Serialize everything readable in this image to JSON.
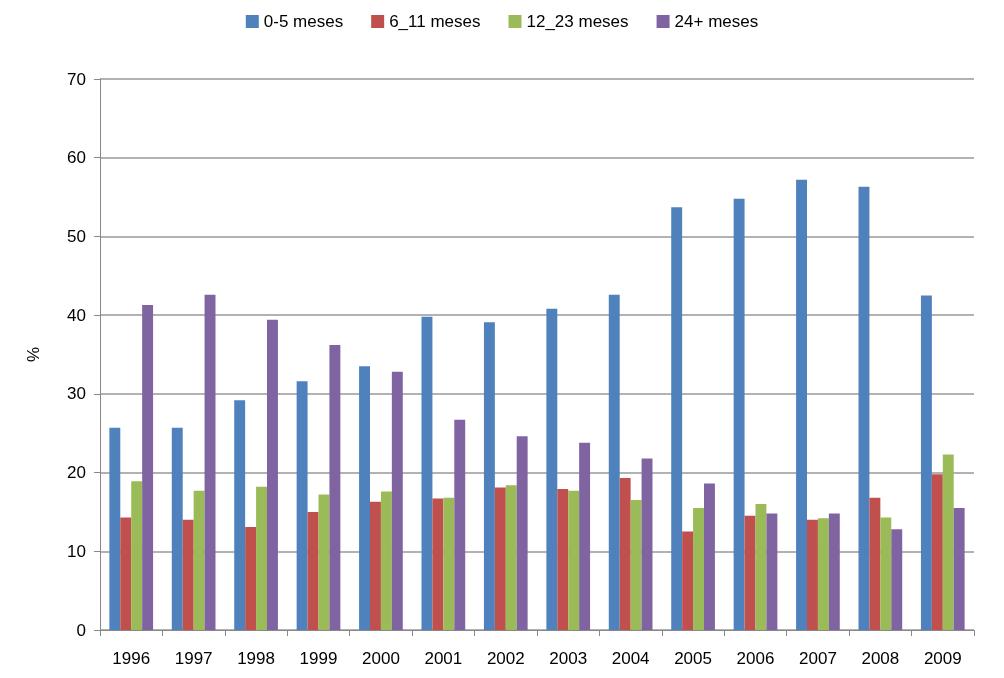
{
  "chart_data": {
    "type": "bar",
    "ylabel": "%",
    "categories": [
      "1996",
      "1997",
      "1998",
      "1999",
      "2000",
      "2001",
      "2002",
      "2003",
      "2004",
      "2005",
      "2006",
      "2007",
      "2008",
      "2009"
    ],
    "series": [
      {
        "name": "0-5 meses",
        "color": "#4f81bd",
        "values": [
          25.7,
          25.7,
          29.2,
          31.6,
          33.5,
          39.8,
          39.1,
          40.8,
          42.6,
          53.7,
          54.8,
          57.2,
          56.3,
          42.5
        ]
      },
      {
        "name": "6_11 meses",
        "color": "#c0504d",
        "values": [
          14.3,
          14.0,
          13.1,
          15.0,
          16.3,
          16.7,
          18.1,
          17.9,
          19.3,
          12.5,
          14.5,
          14.0,
          16.8,
          19.8
        ]
      },
      {
        "name": "12_23 meses",
        "color": "#9bbb59",
        "values": [
          18.9,
          17.7,
          18.2,
          17.2,
          17.6,
          16.8,
          18.4,
          17.7,
          16.5,
          15.5,
          16.0,
          14.2,
          14.3,
          22.3
        ]
      },
      {
        "name": "24+ meses",
        "color": "#8064a2",
        "values": [
          41.3,
          42.6,
          39.4,
          36.2,
          32.8,
          26.7,
          24.6,
          23.8,
          21.8,
          18.6,
          14.8,
          14.8,
          12.8,
          15.5
        ]
      }
    ],
    "ylim": [
      0,
      70
    ],
    "yticks": [
      0,
      10,
      20,
      30,
      40,
      50,
      60,
      70
    ],
    "grid": "y",
    "legend": "top"
  }
}
